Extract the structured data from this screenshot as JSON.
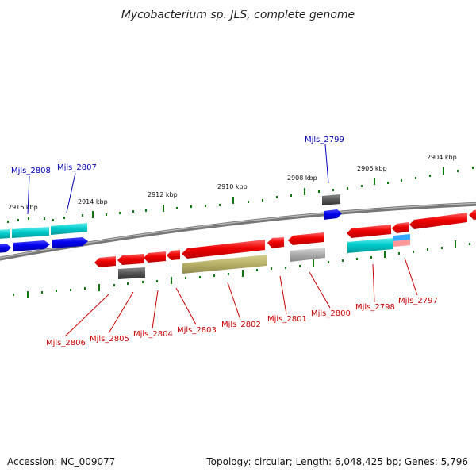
{
  "title": "Mycobacterium sp. JLS, complete genome",
  "footer": {
    "accession": "Accession: NC_009077",
    "summary": "Topology: circular; Length: 6,048,425 bp; Genes: 5,796"
  },
  "colors": {
    "red": "#ff0000",
    "blue": "#0000ee",
    "cyan": "#00cccc",
    "gray": "#555555",
    "olive": "#b7b068",
    "silver": "#aaaaaa",
    "light_blue": "#33aaff",
    "pink": "#ff9999",
    "tick_green": "#117711",
    "label_blue": "#0000bb",
    "label_red": "#cc0000"
  },
  "kbp_marks": [
    "2916 kbp",
    "2914 kbp",
    "2912 kbp",
    "2910 kbp",
    "2908 kbp",
    "2906 kbp",
    "2904 kbp"
  ],
  "gene_labels_top": [
    "Mjls_2808",
    "Mjls_2807",
    "Mjls_2799"
  ],
  "gene_labels_bottom": [
    "Mjls_2806",
    "Mjls_2805",
    "Mjls_2804",
    "Mjls_2803",
    "Mjls_2802",
    "Mjls_2801",
    "Mjls_2800",
    "Mjls_2798",
    "Mjls_2797"
  ]
}
